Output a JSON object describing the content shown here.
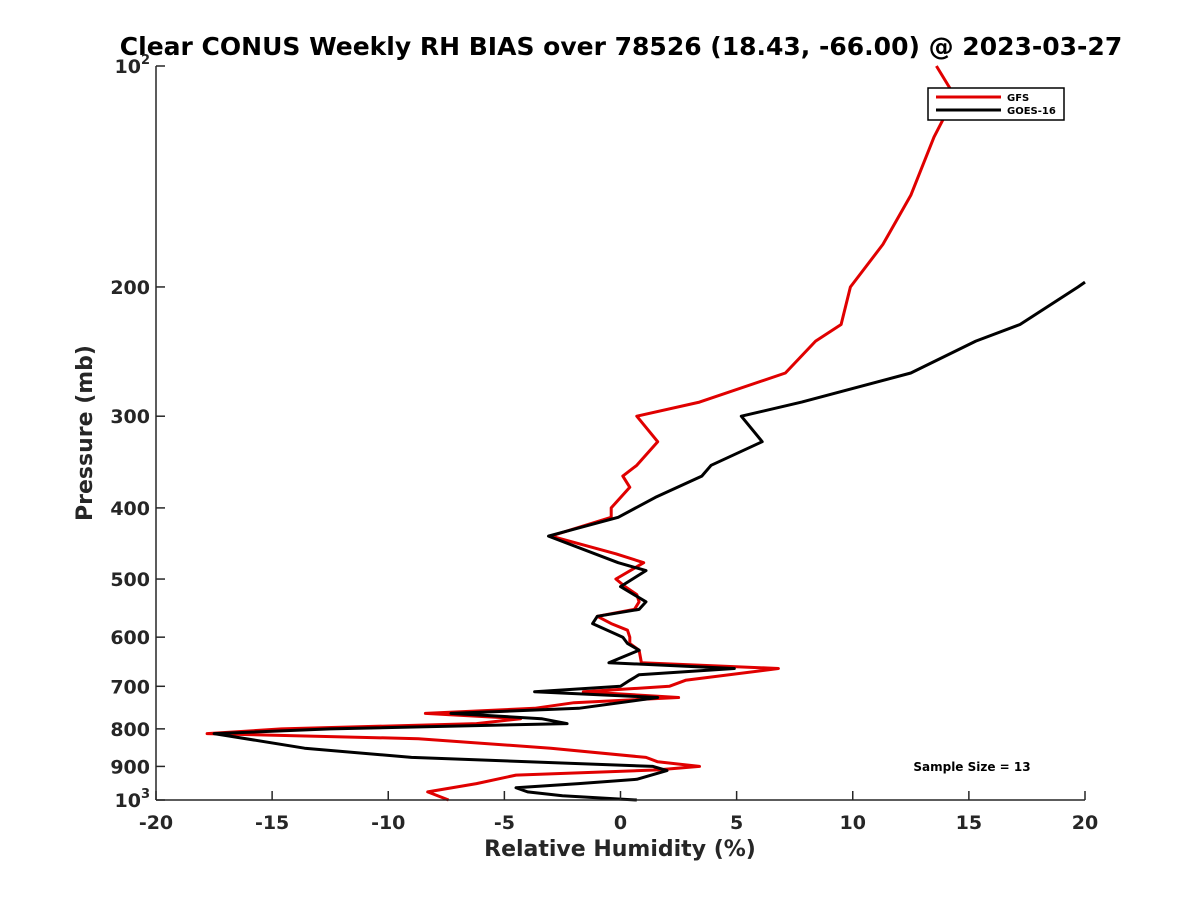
{
  "chart_data": {
    "type": "line",
    "title": "Clear CONUS Weekly RH BIAS over 78526 (18.43, -66.00) @ 2023-03-27",
    "xlabel": "Relative Humidity (%)",
    "ylabel": "Pressure (mb)",
    "xlim": [
      -20,
      20
    ],
    "ylim": [
      100,
      1000
    ],
    "y_scale": "log",
    "y_reversed": true,
    "grid": false,
    "legend_position": "top-right",
    "x_ticks": [
      "-20",
      "-15",
      "-10",
      "-5",
      "0",
      "5",
      "10",
      "15",
      "20"
    ],
    "y_ticks": [
      {
        "value": 100,
        "base": "10",
        "exp": "2"
      },
      {
        "value": 200,
        "base": "200",
        "exp": ""
      },
      {
        "value": 300,
        "base": "300",
        "exp": ""
      },
      {
        "value": 400,
        "base": "400",
        "exp": ""
      },
      {
        "value": 500,
        "base": "500",
        "exp": ""
      },
      {
        "value": 600,
        "base": "600",
        "exp": ""
      },
      {
        "value": 700,
        "base": "700",
        "exp": ""
      },
      {
        "value": 800,
        "base": "800",
        "exp": ""
      },
      {
        "value": 900,
        "base": "900",
        "exp": ""
      },
      {
        "value": 1000,
        "base": "10",
        "exp": "3"
      }
    ],
    "series": [
      {
        "name": "GFS",
        "color": "#e00000",
        "points": [
          [
            -7.4,
            1000
          ],
          [
            -8.3,
            975
          ],
          [
            -6.2,
            950
          ],
          [
            -4.5,
            925
          ],
          [
            1.6,
            910
          ],
          [
            3.4,
            900
          ],
          [
            1.6,
            887
          ],
          [
            1.1,
            875
          ],
          [
            -3.0,
            850
          ],
          [
            -8.7,
            825
          ],
          [
            -17.8,
            812
          ],
          [
            -14.6,
            800
          ],
          [
            -6.2,
            787
          ],
          [
            -4.3,
            775
          ],
          [
            -8.4,
            762
          ],
          [
            -3.7,
            750
          ],
          [
            -2.0,
            737
          ],
          [
            2.5,
            725
          ],
          [
            -1.6,
            712
          ],
          [
            2.1,
            700
          ],
          [
            2.8,
            687
          ],
          [
            6.8,
            662
          ],
          [
            0.9,
            650
          ],
          [
            0.8,
            625
          ],
          [
            0.4,
            612
          ],
          [
            0.4,
            600
          ],
          [
            0.3,
            587
          ],
          [
            -0.4,
            575
          ],
          [
            -1.0,
            562
          ],
          [
            0.6,
            550
          ],
          [
            0.8,
            537
          ],
          [
            0.7,
            525
          ],
          [
            0.2,
            512
          ],
          [
            -0.2,
            500
          ],
          [
            1.0,
            475
          ],
          [
            -0.2,
            462
          ],
          [
            -3.0,
            437
          ],
          [
            -0.4,
            412
          ],
          [
            -0.4,
            400
          ],
          [
            0.4,
            375
          ],
          [
            0.1,
            362
          ],
          [
            0.7,
            350
          ],
          [
            1.6,
            325
          ],
          [
            0.7,
            300
          ],
          [
            3.4,
            287
          ],
          [
            7.1,
            262
          ],
          [
            8.4,
            237
          ],
          [
            9.5,
            225
          ],
          [
            9.9,
            200
          ],
          [
            11.3,
            175
          ],
          [
            12.5,
            150
          ],
          [
            13.5,
            125
          ],
          [
            14.4,
            110
          ],
          [
            13.6,
            100
          ]
        ]
      },
      {
        "name": "GOES-16",
        "color": "#000000",
        "points": [
          [
            0.7,
            1000
          ],
          [
            -2.5,
            987
          ],
          [
            -4.0,
            975
          ],
          [
            -4.5,
            962
          ],
          [
            -1.8,
            950
          ],
          [
            0.7,
            937
          ],
          [
            2.0,
            912
          ],
          [
            1.4,
            900
          ],
          [
            -9.0,
            875
          ],
          [
            -13.6,
            850
          ],
          [
            -17.5,
            812
          ],
          [
            -12.5,
            800
          ],
          [
            -2.3,
            787
          ],
          [
            -3.4,
            775
          ],
          [
            -7.3,
            762
          ],
          [
            -1.8,
            750
          ],
          [
            1.6,
            725
          ],
          [
            -3.7,
            712
          ],
          [
            0.0,
            700
          ],
          [
            0.4,
            687
          ],
          [
            0.8,
            675
          ],
          [
            4.9,
            662
          ],
          [
            -0.5,
            650
          ],
          [
            0.8,
            625
          ],
          [
            0.3,
            612
          ],
          [
            0.1,
            600
          ],
          [
            -1.2,
            575
          ],
          [
            -1.0,
            562
          ],
          [
            0.8,
            550
          ],
          [
            1.1,
            537
          ],
          [
            0.0,
            512
          ],
          [
            1.1,
            487
          ],
          [
            -0.1,
            475
          ],
          [
            -3.1,
            437
          ],
          [
            -0.1,
            412
          ],
          [
            1.5,
            387
          ],
          [
            3.5,
            362
          ],
          [
            3.9,
            350
          ],
          [
            6.1,
            325
          ],
          [
            5.2,
            300
          ],
          [
            7.8,
            287
          ],
          [
            12.5,
            262
          ],
          [
            15.3,
            237
          ],
          [
            17.2,
            225
          ],
          [
            19.7,
            200
          ],
          [
            20.0,
            197
          ]
        ]
      }
    ],
    "annotations": [
      {
        "text": "Sample Size = 13"
      }
    ]
  }
}
